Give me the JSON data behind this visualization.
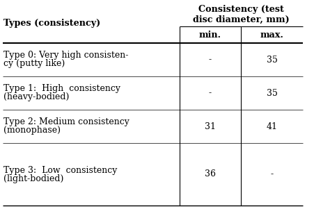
{
  "col1_header": "Types (consistency)",
  "col2_header": "Consistency (test\ndisc diameter, mm)",
  "col3_header": "min.",
  "col4_header": "max.",
  "rows": [
    {
      "type_line1": "Type 0: Very high consisten-",
      "type_line2": "cy (putty like)",
      "min": "-",
      "max": "35"
    },
    {
      "type_line1": "Type 1:  High  consistency",
      "type_line2": "(heavy-bodied)",
      "min": "-",
      "max": "35"
    },
    {
      "type_line1": "Type 2: Medium consistency",
      "type_line2": "(monophase)",
      "min": "31",
      "max": "41"
    },
    {
      "type_line1": "Type 3:  Low  consistency",
      "type_line2": "(light-bodied)",
      "min": "36",
      "max": "-"
    }
  ],
  "bg_color": "#ffffff",
  "line_color": "#000000",
  "text_color": "#000000",
  "font_size_header": 9.2,
  "font_size_subheader": 9.2,
  "font_size_cell": 9.0
}
